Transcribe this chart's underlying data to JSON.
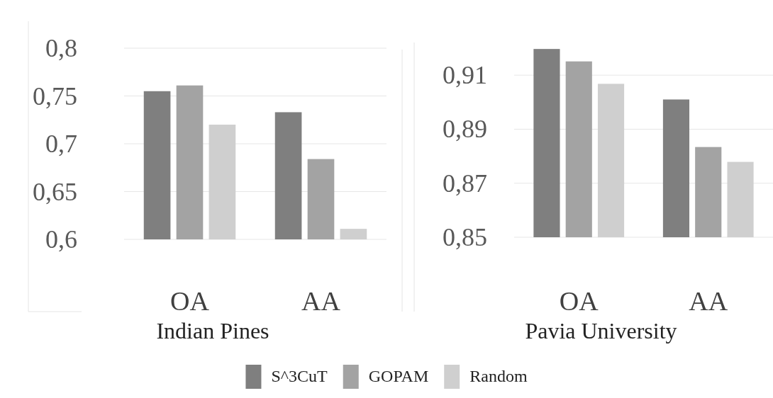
{
  "chart_data": [
    {
      "type": "bar",
      "xlabel": "Indian Pines",
      "categories": [
        "OA",
        "AA"
      ],
      "ylim": [
        0.6,
        0.8
      ],
      "yticks": [
        {
          "value": 0.6,
          "label": "0,6"
        },
        {
          "value": 0.65,
          "label": "0,65"
        },
        {
          "value": 0.7,
          "label": "0,7"
        },
        {
          "value": 0.75,
          "label": "0,75"
        },
        {
          "value": 0.8,
          "label": "0,8"
        }
      ],
      "grid": "y",
      "legend": false,
      "series": [
        {
          "color": "#7f7f7f",
          "values": [
            0.755,
            0.733
          ]
        },
        {
          "color": "#a3a3a3",
          "values": [
            0.761,
            0.684
          ]
        },
        {
          "color": "#cfcfcf",
          "values": [
            0.72,
            0.611
          ]
        }
      ]
    },
    {
      "type": "bar",
      "xlabel": "Pavia University",
      "categories": [
        "OA",
        "AA"
      ],
      "ylim": [
        0.85,
        0.92
      ],
      "yticks": [
        {
          "value": 0.85,
          "label": "0,85"
        },
        {
          "value": 0.87,
          "label": "0,87"
        },
        {
          "value": 0.89,
          "label": "0,89"
        },
        {
          "value": 0.91,
          "label": "0,91"
        }
      ],
      "grid": "y",
      "legend": "bottom",
      "series": [
        {
          "name": "S^3CuT",
          "color": "#7f7f7f",
          "values": [
            0.9197,
            0.901
          ]
        },
        {
          "name": "GOPAM",
          "color": "#a3a3a3",
          "values": [
            0.9151,
            0.8834
          ]
        },
        {
          "name": "Random",
          "color": "#cfcfcf",
          "values": [
            0.9068,
            0.8779
          ]
        }
      ]
    }
  ]
}
